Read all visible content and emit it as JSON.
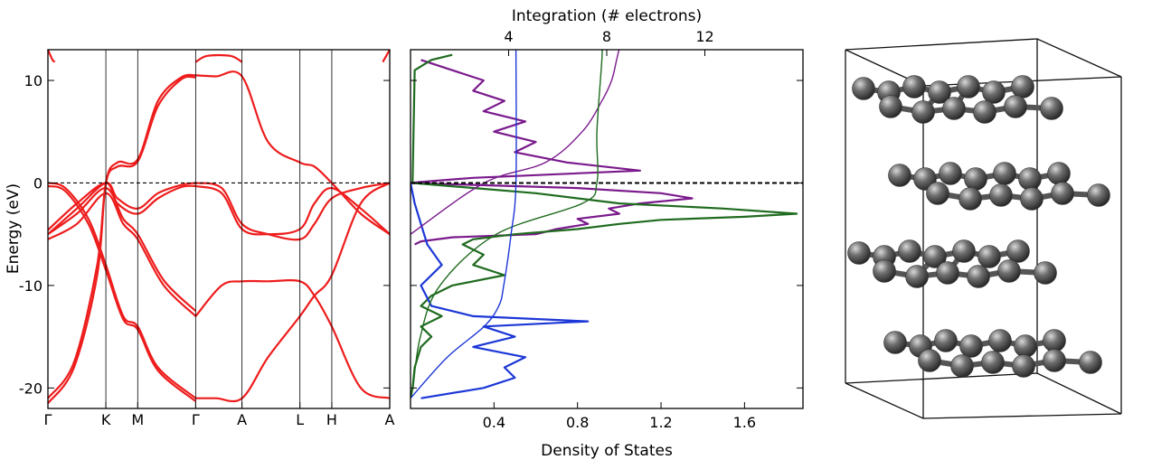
{
  "chart_data": [
    {
      "type": "line",
      "panel": "band-structure",
      "xlabel": "",
      "ylabel": "Energy (eV)",
      "ylim": [
        -22,
        13
      ],
      "yticks": [
        10,
        0,
        -10,
        -20
      ],
      "kpath": [
        "Γ",
        "K",
        "M",
        "Γ",
        "A",
        "L",
        "H",
        "A"
      ],
      "kpath_x": [
        0,
        1,
        1.55,
        2.55,
        3.35,
        4.35,
        4.9,
        5.9
      ],
      "fermi_level": 0,
      "series_color": "#ee1c1c",
      "series": [
        {
          "x": [
            0,
            0.45,
            0.85,
            1,
            1.2,
            1.55,
            1.9,
            2.3,
            2.55
          ],
          "values": [
            -21.5,
            -18,
            -9,
            0,
            2,
            2.3,
            8,
            10.3,
            10.5
          ]
        },
        {
          "x": [
            0,
            0.45,
            0.85,
            1,
            1.2,
            1.55,
            1.9,
            2.3,
            2.55
          ],
          "values": [
            -21,
            -17.5,
            -8,
            0,
            1.6,
            2.1,
            7.5,
            10.1,
            10.3
          ]
        },
        {
          "x": [
            0,
            0.5,
            1,
            1.2,
            1.55,
            1.9,
            2.3,
            2.55
          ],
          "values": [
            -5,
            -2.5,
            0,
            -1.5,
            -2.5,
            -1,
            -0.2,
            0
          ]
        },
        {
          "x": [
            0,
            0.5,
            1,
            1.2,
            1.55,
            1.9,
            2.3,
            2.55
          ],
          "values": [
            -4.6,
            -2,
            0,
            -2,
            -3,
            -1.5,
            -0.4,
            -0.3
          ]
        },
        {
          "x": [
            0,
            0.3,
            0.7,
            1,
            1.3,
            1.55,
            1.9,
            2.55
          ],
          "values": [
            0,
            -0.5,
            -3.5,
            -8,
            -13,
            -14,
            -18,
            -21
          ]
        },
        {
          "x": [
            0,
            0.3,
            0.7,
            1,
            1.3,
            1.55,
            1.9,
            2.55
          ],
          "values": [
            -0.3,
            -0.8,
            -4,
            -8.5,
            -13.3,
            -14.3,
            -18.3,
            -21.3
          ]
        },
        {
          "x": [
            0,
            0.5,
            1,
            1.3,
            1.55,
            2,
            2.55
          ],
          "values": [
            -5.5,
            -4,
            -1,
            -4,
            -5.5,
            -10,
            -13
          ]
        },
        {
          "x": [
            0,
            0.5,
            1,
            1.3,
            1.55,
            2,
            2.55
          ],
          "values": [
            -5,
            -3,
            -0.5,
            -3.5,
            -5,
            -9.5,
            -12.5
          ]
        },
        {
          "x": [
            2.55,
            2.9,
            3.35,
            3.8,
            4.35,
            4.6,
            4.9,
            5.4,
            5.9
          ],
          "values": [
            10.5,
            10.4,
            10.4,
            4,
            2,
            1.6,
            0,
            -3,
            -5
          ]
        },
        {
          "x": [
            2.55,
            2.9,
            3.35,
            3.8,
            4.35,
            4.6,
            4.9,
            5.4,
            5.9
          ],
          "values": [
            -21,
            -21,
            -21,
            -17,
            -13,
            -11,
            -9,
            -2,
            0
          ]
        },
        {
          "x": [
            2.55,
            3,
            3.35,
            3.8,
            4.35,
            4.6,
            4.9,
            5.4,
            5.9
          ],
          "values": [
            -13,
            -10,
            -9.6,
            -9.6,
            -9.6,
            -11,
            -14,
            -20,
            -21
          ]
        },
        {
          "x": [
            2.55,
            3,
            3.35,
            3.8,
            4.35,
            4.6,
            4.9,
            5.4,
            5.9
          ],
          "values": [
            0,
            -0.5,
            -4,
            -5,
            -5.5,
            -4,
            -1.5,
            -0.5,
            0
          ]
        },
        {
          "x": [
            2.55,
            3,
            3.35,
            3.8,
            4.35,
            4.6,
            4.9,
            5.4,
            5.9
          ],
          "values": [
            -0.3,
            -1,
            -4.5,
            -5,
            -4.5,
            -2,
            -0.5,
            -2.5,
            -5
          ]
        },
        {
          "x": [
            0,
            0.08,
            0.12
          ],
          "values": [
            13,
            12,
            11.8
          ]
        },
        {
          "x": [
            2.55,
            2.75,
            3.15,
            3.35
          ],
          "values": [
            11.8,
            12.4,
            12.4,
            11.8
          ]
        },
        {
          "x": [
            5.78,
            5.84,
            5.9
          ],
          "values": [
            11.8,
            12.4,
            13
          ]
        }
      ]
    },
    {
      "type": "line",
      "panel": "density-of-states",
      "xlabel": "Density of States",
      "x2label": "Integration (# electrons)",
      "xlim": [
        0,
        1.88
      ],
      "xticks": [
        0.4,
        0.8,
        1.2,
        1.6
      ],
      "x2ticks": [
        4,
        8,
        12
      ],
      "x2lim": [
        0,
        16
      ],
      "ylim": [
        -22,
        13
      ],
      "fermi_level": 0,
      "series": [
        {
          "color": "#7a1a8c",
          "kind": "dos",
          "y": [
            12,
            11,
            10,
            9,
            8,
            7,
            6,
            5,
            4,
            3,
            2,
            1.2,
            0.5,
            0.1,
            0,
            -0.5,
            -1,
            -1.5,
            -2,
            -2.5,
            -3,
            -3.5,
            -4,
            -4.5,
            -5,
            -5.3,
            -5.7,
            -6
          ],
          "values": [
            0.05,
            0.2,
            0.35,
            0.3,
            0.45,
            0.35,
            0.55,
            0.4,
            0.6,
            0.5,
            0.75,
            1.1,
            0.3,
            0.05,
            0,
            0.8,
            1.2,
            1.35,
            1.1,
            0.95,
            1.0,
            0.8,
            0.85,
            0.7,
            0.6,
            0.2,
            0.05,
            0.02
          ]
        },
        {
          "color": "#1f6b1f",
          "kind": "dos",
          "y": [
            12.5,
            12,
            11,
            0.2,
            0,
            -1,
            -2,
            -2.5,
            -3,
            -3.3,
            -3.6,
            -4,
            -4.5,
            -5,
            -5.5,
            -6,
            -7,
            -8,
            -9,
            -10,
            -11,
            -12,
            -13,
            -14,
            -15,
            -16,
            -18,
            -20,
            -21
          ],
          "values": [
            0.2,
            0.1,
            0.02,
            0.01,
            0.01,
            0.6,
            1.0,
            1.5,
            1.85,
            1.6,
            1.2,
            1.0,
            0.8,
            0.5,
            0.3,
            0.25,
            0.35,
            0.3,
            0.45,
            0.2,
            0.1,
            0.05,
            0.15,
            0.05,
            0.1,
            0.05,
            0.02,
            0.01,
            0
          ]
        },
        {
          "color": "#1c37d6",
          "kind": "dos",
          "y": [
            0,
            -2,
            -4,
            -6,
            -8,
            -10,
            -12,
            -13,
            -13.5,
            -14,
            -15,
            -16,
            -17,
            -18,
            -19,
            -20,
            -21
          ],
          "values": [
            0,
            0.02,
            0.05,
            0.08,
            0.15,
            0.05,
            0.1,
            0.3,
            0.85,
            0.35,
            0.5,
            0.3,
            0.55,
            0.45,
            0.5,
            0.35,
            0.05
          ]
        },
        {
          "color": "#7a1a8c",
          "kind": "integration",
          "y": [
            -5,
            0,
            2,
            5,
            8,
            10,
            12,
            13
          ],
          "values": [
            0,
            3,
            5.5,
            7,
            7.8,
            8.2,
            8.4,
            8.5
          ]
        },
        {
          "color": "#1f6b1f",
          "kind": "integration",
          "y": [
            -20,
            -15,
            -10,
            -5,
            -2,
            0,
            5,
            12,
            13
          ],
          "values": [
            0.1,
            0.4,
            1.2,
            3.5,
            7,
            7.6,
            7.6,
            7.8,
            7.8
          ]
        },
        {
          "color": "#1c37d6",
          "kind": "integration",
          "y": [
            -21,
            -17,
            -14,
            -12,
            -10,
            -5,
            0,
            13
          ],
          "values": [
            0,
            1.5,
            3,
            3.6,
            3.8,
            4.1,
            4.3,
            4.3
          ]
        }
      ]
    }
  ],
  "structure": {
    "atom_color": "#6e6e6e",
    "bond_color": "#555555",
    "layers": 4
  }
}
